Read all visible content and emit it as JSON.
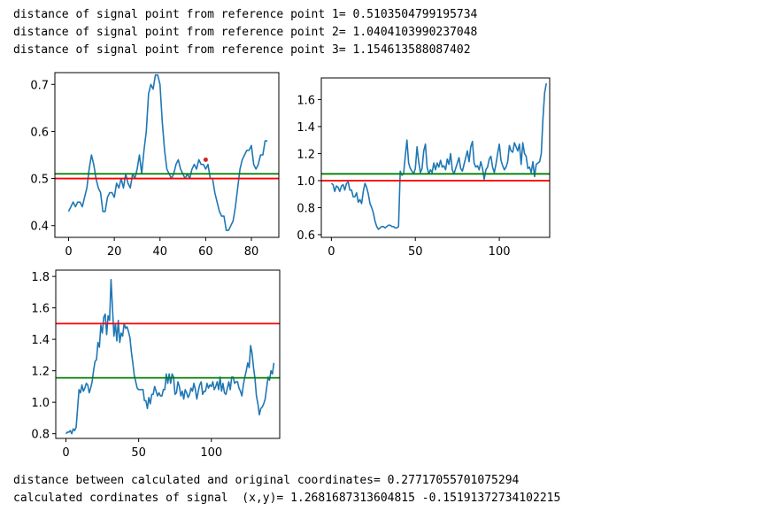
{
  "output_lines_top": [
    "distance of signal point from reference point 1= 0.5103504799195734",
    "distance of signal point from reference point 2= 1.0404103990237048",
    "distance of signal point from reference point 3= 1.154613588087402"
  ],
  "output_lines_bottom": [
    "distance between calculated and original coordinates= 0.27717055701075294",
    "calculated cordinates of signal  (x,y)= 1.2681687313604815 -0.15191372734102215"
  ],
  "colors": {
    "signal": "#1f77b4",
    "red_line": "#ff0000",
    "green_line": "#008000",
    "marker": "#d62728"
  },
  "chart_data": [
    {
      "type": "line",
      "xlim": [
        -6,
        92
      ],
      "ylim": [
        0.375,
        0.725
      ],
      "xticks": [
        0,
        20,
        40,
        60,
        80
      ],
      "yticks": [
        0.4,
        0.5,
        0.6,
        0.7
      ],
      "xtick_labels": [
        "0",
        "20",
        "40",
        "60",
        "80"
      ],
      "ytick_labels": [
        "0.4",
        "0.5",
        "0.6",
        "0.7"
      ],
      "series": [
        {
          "values": [
            0.43,
            0.44,
            0.45,
            0.44,
            0.45,
            0.45,
            0.44,
            0.46,
            0.48,
            0.52,
            0.55,
            0.53,
            0.5,
            0.48,
            0.47,
            0.43,
            0.43,
            0.46,
            0.47,
            0.47,
            0.46,
            0.49,
            0.48,
            0.5,
            0.48,
            0.51,
            0.49,
            0.48,
            0.51,
            0.5,
            0.52,
            0.55,
            0.51,
            0.56,
            0.6,
            0.68,
            0.7,
            0.69,
            0.72,
            0.72,
            0.7,
            0.62,
            0.56,
            0.52,
            0.51,
            0.5,
            0.51,
            0.53,
            0.54,
            0.52,
            0.51,
            0.5,
            0.51,
            0.5,
            0.52,
            0.53,
            0.52,
            0.54,
            0.53,
            0.53,
            0.52,
            0.53,
            0.5,
            0.5,
            0.47,
            0.45,
            0.43,
            0.42,
            0.42,
            0.39,
            0.39,
            0.4,
            0.41,
            0.44,
            0.48,
            0.52,
            0.54,
            0.55,
            0.56,
            0.56,
            0.57,
            0.53,
            0.52,
            0.53,
            0.55,
            0.55,
            0.58,
            0.58
          ]
        }
      ],
      "hlines": [
        {
          "y": 0.51,
          "color": "green"
        },
        {
          "y": 0.5,
          "color": "red"
        }
      ],
      "points": [
        {
          "x": 60,
          "y": 0.54
        }
      ]
    },
    {
      "type": "line",
      "xlim": [
        -6,
        130
      ],
      "ylim": [
        0.58,
        1.76
      ],
      "xticks": [
        0,
        50,
        100
      ],
      "yticks": [
        0.6,
        0.8,
        1.0,
        1.2,
        1.4,
        1.6
      ],
      "xtick_labels": [
        "0",
        "50",
        "100"
      ],
      "ytick_labels": [
        "0.6",
        "0.8",
        "1.0",
        "1.2",
        "1.4",
        "1.6"
      ],
      "series": [
        {
          "values": [
            0.98,
            0.97,
            0.92,
            0.96,
            0.95,
            0.92,
            0.96,
            0.97,
            0.93,
            0.98,
            0.99,
            0.93,
            0.93,
            0.88,
            0.88,
            0.91,
            0.84,
            0.86,
            0.83,
            0.92,
            0.98,
            0.95,
            0.9,
            0.83,
            0.8,
            0.76,
            0.7,
            0.66,
            0.64,
            0.65,
            0.66,
            0.66,
            0.65,
            0.66,
            0.67,
            0.67,
            0.66,
            0.66,
            0.65,
            0.65,
            0.66,
            1.07,
            1.04,
            1.05,
            1.18,
            1.3,
            1.13,
            1.09,
            1.07,
            1.05,
            1.09,
            1.25,
            1.14,
            1.06,
            1.09,
            1.22,
            1.27,
            1.1,
            1.05,
            1.08,
            1.06,
            1.13,
            1.08,
            1.13,
            1.1,
            1.15,
            1.1,
            1.11,
            1.08,
            1.16,
            1.12,
            1.2,
            1.08,
            1.05,
            1.09,
            1.13,
            1.17,
            1.09,
            1.07,
            1.12,
            1.17,
            1.22,
            1.14,
            1.25,
            1.29,
            1.13,
            1.1,
            1.11,
            1.08,
            1.14,
            1.09,
            1.01,
            1.08,
            1.1,
            1.16,
            1.18,
            1.1,
            1.06,
            1.12,
            1.2,
            1.27,
            1.15,
            1.11,
            1.08,
            1.1,
            1.14,
            1.26,
            1.22,
            1.21,
            1.28,
            1.25,
            1.22,
            1.27,
            1.12,
            1.28,
            1.2,
            1.18,
            1.09,
            1.1,
            1.06,
            1.14,
            1.03,
            1.12,
            1.13,
            1.14,
            1.2,
            1.46,
            1.65,
            1.72
          ]
        }
      ],
      "hlines": [
        {
          "y": 1.05,
          "color": "green"
        },
        {
          "y": 1.0,
          "color": "red"
        }
      ]
    },
    {
      "type": "line",
      "xlim": [
        -7,
        147
      ],
      "ylim": [
        0.77,
        1.84
      ],
      "xticks": [
        0,
        50,
        100
      ],
      "yticks": [
        0.8,
        1.0,
        1.2,
        1.4,
        1.6,
        1.8
      ],
      "xtick_labels": [
        "0",
        "50",
        "100"
      ],
      "ytick_labels": [
        "0.8",
        "1.0",
        "1.2",
        "1.4",
        "1.6",
        "1.8"
      ],
      "series": [
        {
          "values": [
            0.8,
            0.81,
            0.81,
            0.82,
            0.8,
            0.83,
            0.82,
            0.84,
            0.96,
            1.08,
            1.06,
            1.11,
            1.07,
            1.09,
            1.12,
            1.11,
            1.06,
            1.09,
            1.13,
            1.2,
            1.26,
            1.27,
            1.38,
            1.35,
            1.49,
            1.44,
            1.54,
            1.56,
            1.43,
            1.55,
            1.52,
            1.78,
            1.6,
            1.42,
            1.5,
            1.39,
            1.52,
            1.38,
            1.44,
            1.42,
            1.5,
            1.47,
            1.48,
            1.45,
            1.41,
            1.32,
            1.25,
            1.17,
            1.13,
            1.09,
            1.08,
            1.08,
            1.08,
            1.08,
            1.01,
            1.01,
            0.96,
            1.03,
            0.99,
            1.05,
            1.05,
            1.1,
            1.07,
            1.04,
            1.06,
            1.04,
            1.04,
            1.08,
            1.08,
            1.18,
            1.12,
            1.18,
            1.12,
            1.18,
            1.16,
            1.05,
            1.06,
            1.13,
            1.1,
            1.04,
            1.07,
            1.02,
            1.08,
            1.06,
            1.03,
            1.05,
            1.09,
            1.07,
            1.12,
            1.08,
            1.02,
            1.07,
            1.11,
            1.13,
            1.05,
            1.07,
            1.07,
            1.12,
            1.09,
            1.11,
            1.1,
            1.13,
            1.08,
            1.1,
            1.13,
            1.08,
            1.16,
            1.07,
            1.12,
            1.06,
            1.05,
            1.09,
            1.13,
            1.08,
            1.16,
            1.16,
            1.12,
            1.13,
            1.13,
            1.09,
            1.07,
            1.04,
            1.11,
            1.16,
            1.2,
            1.25,
            1.22,
            1.36,
            1.31,
            1.22,
            1.15,
            1.04,
            0.99,
            0.92,
            0.96,
            0.97,
            0.99,
            1.02,
            1.09,
            1.16,
            1.14,
            1.2,
            1.18,
            1.25
          ]
        }
      ],
      "hlines": [
        {
          "y": 1.5,
          "color": "red"
        },
        {
          "y": 1.155,
          "color": "green"
        }
      ]
    }
  ]
}
